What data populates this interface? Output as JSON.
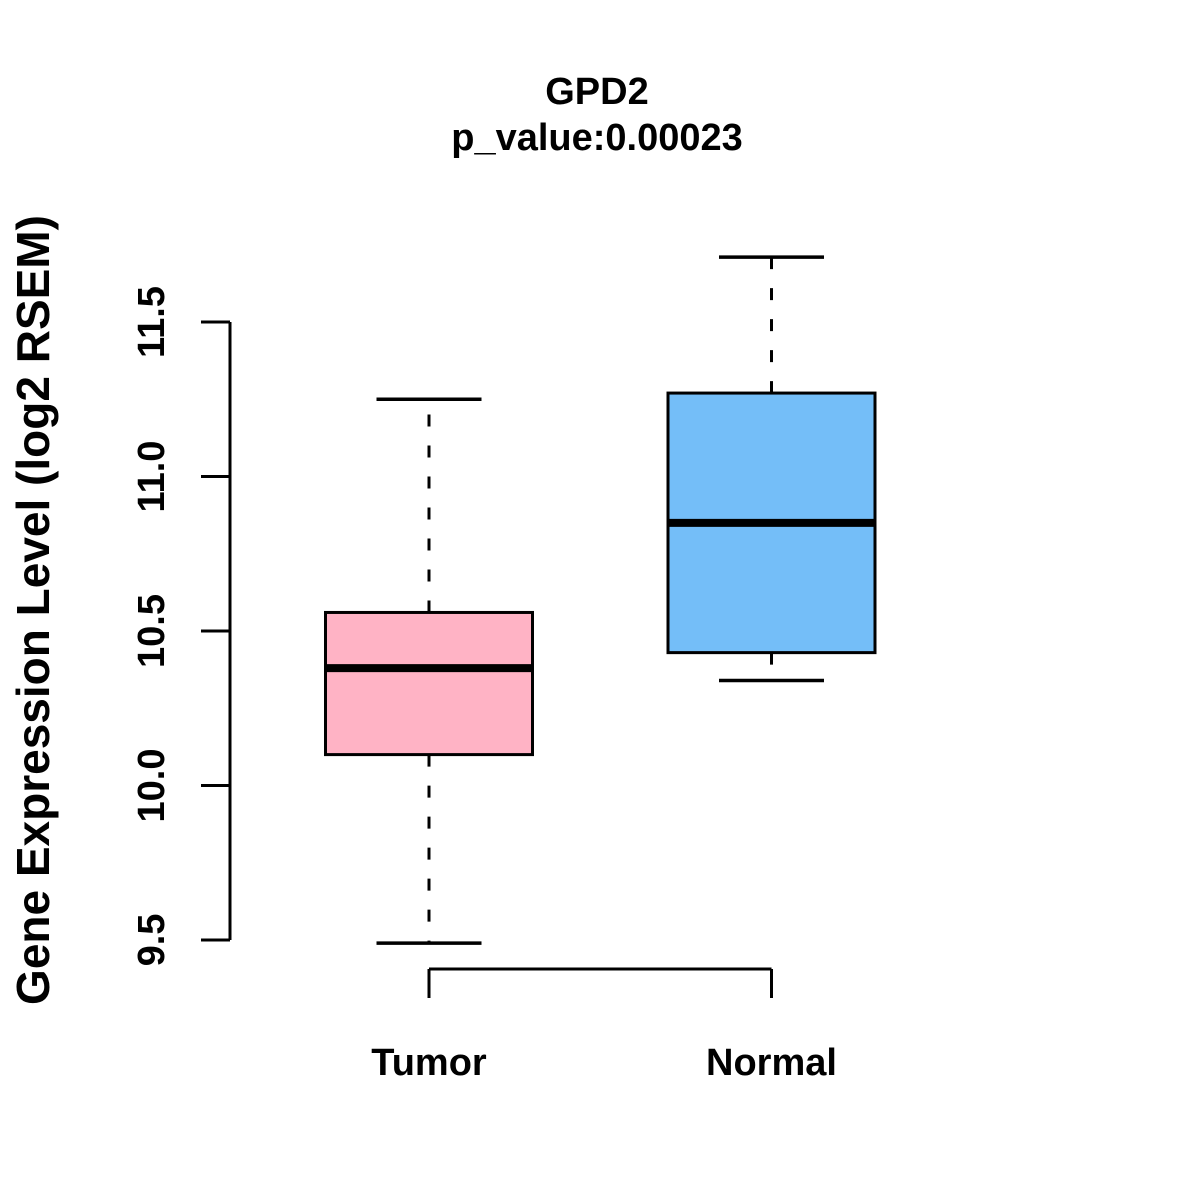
{
  "chart_data": {
    "type": "boxplot",
    "title": "GPD2",
    "subtitle": "p_value:0.00023",
    "ylabel": "Gene Expression Level (log2 RSEM)",
    "xlabel": "",
    "ylim": [
      9.5,
      11.5
    ],
    "yticks": [
      9.5,
      10.0,
      10.5,
      11.0,
      11.5
    ],
    "ytick_labels": [
      "9.5",
      "10.0",
      "10.5",
      "11.0",
      "11.5"
    ],
    "grid": false,
    "legend": "none",
    "groups": [
      {
        "label": "Tumor",
        "color": "#FFB3C5",
        "whisker_low": 9.49,
        "q1": 10.1,
        "median": 10.38,
        "q3": 10.56,
        "whisker_high": 11.25
      },
      {
        "label": "Normal",
        "color": "#74BEF8",
        "whisker_low": 10.34,
        "q1": 10.43,
        "median": 10.85,
        "q3": 11.27,
        "whisker_high": 11.71
      }
    ],
    "line_color": "#000000",
    "background": "#FFFFFF"
  }
}
